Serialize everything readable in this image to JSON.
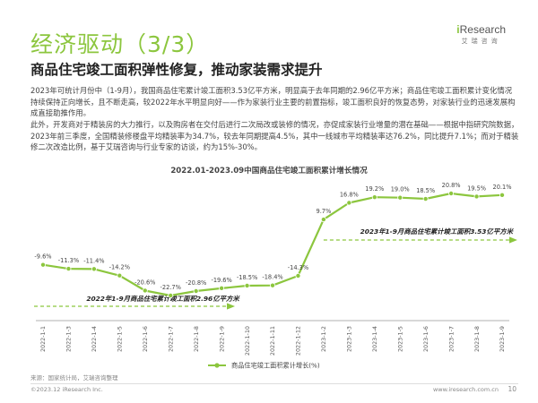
{
  "header": {
    "title": "经济驱动（3/3）",
    "subtitle": "商品住宅竣工面积弹性修复，推动家装需求提升",
    "logo_text": "iResearch",
    "logo_cn": "艾瑞咨询"
  },
  "paragraphs": [
    "2023年可统计月份中（1-9月），我国商品住宅累计竣工面积3.53亿平方米，明显高于去年同期的2.96亿平方米；商品住宅竣工面积累计变化情况持续保持正向增长，且不断走高，较2022年水平明显向好——作为家装行业主要的前置指标，竣工面积良好的恢复态势，对家装行业的迅速发展构成直接助推作用。",
    "此外，开发商对于精装房的大力推行，以及购房者在交付后进行二次局改或装修的情况，亦促成家装行业增量的潜在基础——根据中指研究院数据，2023年前三季度，全国精装修楼盘平均精装率为34.7%，较去年同期提高4.5%，其中一线城市平均精装率达76.2%，同比提升7.1%；而对于精装修二次改造比例，基于艾瑞咨询与行业专家的访谈，约为15%-30%。"
  ],
  "chart_data": {
    "type": "line",
    "title": "2022.01-2023.09中国商品住宅竣工面积累计增长情况",
    "categories": [
      "2022-1-1",
      "2022-1-3",
      "2022-1-4",
      "2022-1-5",
      "2022-1-6",
      "2022-1-7",
      "2022-1-8",
      "2022-1-9",
      "2022-1-10",
      "2022-1-11",
      "2022-1-12",
      "2023-1-2",
      "2023-1-3",
      "2023-1-4",
      "2023-1-5",
      "2023-1-6",
      "2023-1-7",
      "2023-1-8",
      "2023-1-9"
    ],
    "tick_labels": [
      "2022-1-1",
      "2022-1-3",
      "2022-1-4",
      "2022-1-5",
      "2022-1-6",
      "2022-1-7",
      "2022-1-8",
      "2022-1-9",
      "2022-1-10",
      "2022-1-11",
      "2022-1-12",
      "2023-1-2",
      "2023-1-3",
      "2023-1-4",
      "2023-1-5",
      "2023-1-6",
      "2023-1-7",
      "2023-1-8",
      "2023-1-9"
    ],
    "series": [
      {
        "name": "商品住宅竣工面积累计增长(%)",
        "values": [
          -9.6,
          -11.3,
          -11.4,
          -14.2,
          -20.6,
          -22.7,
          -20.8,
          -19.6,
          -18.5,
          -18.4,
          -14.3,
          9.7,
          16.8,
          19.2,
          19.0,
          18.5,
          20.8,
          19.5,
          20.1
        ],
        "labels": [
          "-9.6%",
          "-11.3%",
          "-11.4%",
          "-14.2%",
          "-20.6%",
          "-22.7%",
          "-20.8%",
          "-19.6%",
          "-18.5%",
          "-18.4%",
          "-14.3%",
          "9.7%",
          "16.8%",
          "19.2%",
          "19.0%",
          "18.5%",
          "20.8%",
          "19.5%",
          "20.1%"
        ]
      }
    ],
    "ylim": [
      -25,
      25
    ],
    "grid": false,
    "legend": "bottom",
    "color": "#8cc63e",
    "annotations": [
      {
        "text": "2023年1-9月商品住宅累计竣工面积3.53亿平方米",
        "from_index": 11,
        "to_index": 18,
        "position": "above"
      },
      {
        "text": "2022年1-9月商品住宅累计竣工面积2.96亿平方米",
        "from_index": 0,
        "to_index": 7,
        "position": "below"
      }
    ]
  },
  "footer": {
    "source": "来源：国家统计局，艾瑞咨询整理",
    "copyright": "©2023.12 iResearch Inc.",
    "website": "www.iresearch.com.cn",
    "page_number": "10"
  }
}
